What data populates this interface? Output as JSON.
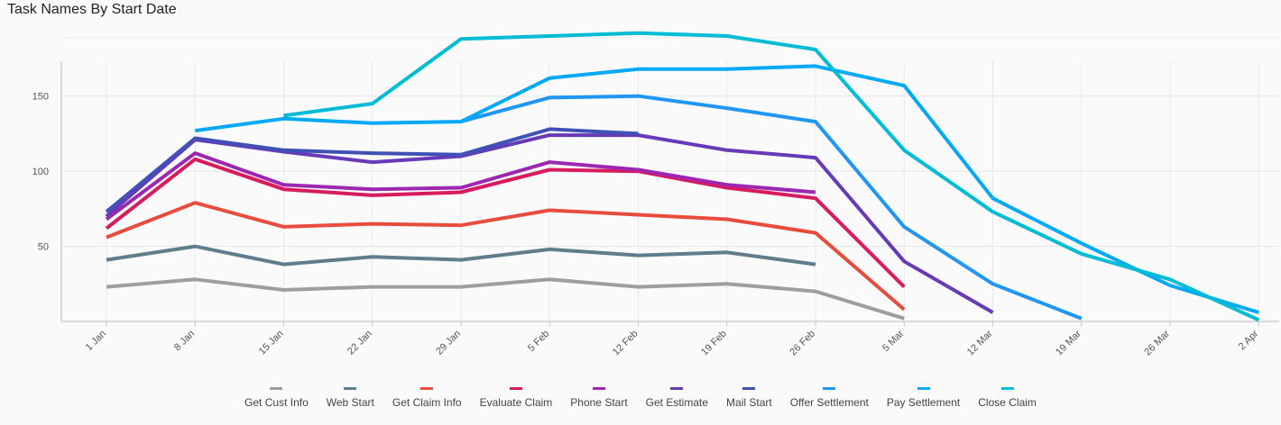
{
  "chart_data": {
    "type": "line",
    "title": "Task Names By Start Date",
    "xlabel": "",
    "ylabel": "",
    "categories": [
      "1 Jan",
      "8 Jan",
      "15 Jan",
      "22 Jan",
      "29 Jan",
      "5 Feb",
      "12 Feb",
      "19 Feb",
      "26 Feb",
      "5 Mar",
      "12 Mar",
      "19 Mar",
      "26 Mar",
      "2 Apr"
    ],
    "y_ticks": [
      50,
      100,
      150
    ],
    "ylim": [
      0,
      190
    ],
    "grid": true,
    "legend_position": "bottom",
    "series": [
      {
        "name": "Get Cust Info",
        "color": "#9e9e9e",
        "values": [
          23,
          28,
          21,
          23,
          23,
          28,
          23,
          25,
          20,
          2,
          null,
          null,
          null,
          null
        ]
      },
      {
        "name": "Web Start",
        "color": "#607d8b",
        "values": [
          41,
          50,
          38,
          43,
          41,
          48,
          44,
          46,
          38,
          null,
          null,
          null,
          null,
          null
        ]
      },
      {
        "name": "Get Claim Info",
        "color": "#e74c3c",
        "values": [
          56,
          79,
          63,
          65,
          64,
          74,
          71,
          68,
          59,
          8,
          null,
          null,
          null,
          null
        ]
      },
      {
        "name": "Evaluate Claim",
        "color": "#d81b60",
        "values": [
          62,
          108,
          88,
          84,
          86,
          101,
          100,
          89,
          82,
          23,
          null,
          null,
          null,
          null
        ]
      },
      {
        "name": "Phone Start",
        "color": "#9c27b0",
        "values": [
          68,
          112,
          91,
          88,
          89,
          106,
          101,
          91,
          86,
          null,
          null,
          null,
          null,
          null
        ]
      },
      {
        "name": "Get Estimate",
        "color": "#673ab7",
        "values": [
          70,
          121,
          113,
          106,
          110,
          124,
          124,
          114,
          109,
          40,
          6,
          null,
          null,
          null
        ]
      },
      {
        "name": "Mail Start",
        "color": "#3f51b5",
        "values": [
          73,
          122,
          114,
          112,
          111,
          128,
          125,
          null,
          null,
          null,
          null,
          null,
          null,
          null
        ]
      },
      {
        "name": "Offer Settlement",
        "color": "#2196f3",
        "values": [
          null,
          null,
          null,
          null,
          133,
          149,
          150,
          142,
          133,
          63,
          25,
          2,
          null,
          null
        ]
      },
      {
        "name": "Pay Settlement",
        "color": "#03a9f4",
        "values": [
          null,
          127,
          135,
          132,
          133,
          162,
          168,
          168,
          170,
          157,
          82,
          52,
          24,
          6
        ]
      },
      {
        "name": "Close Claim",
        "color": "#00bcd4",
        "values": [
          null,
          null,
          137,
          145,
          188,
          190,
          192,
          190,
          181,
          114,
          73,
          45,
          28,
          1
        ]
      }
    ]
  }
}
